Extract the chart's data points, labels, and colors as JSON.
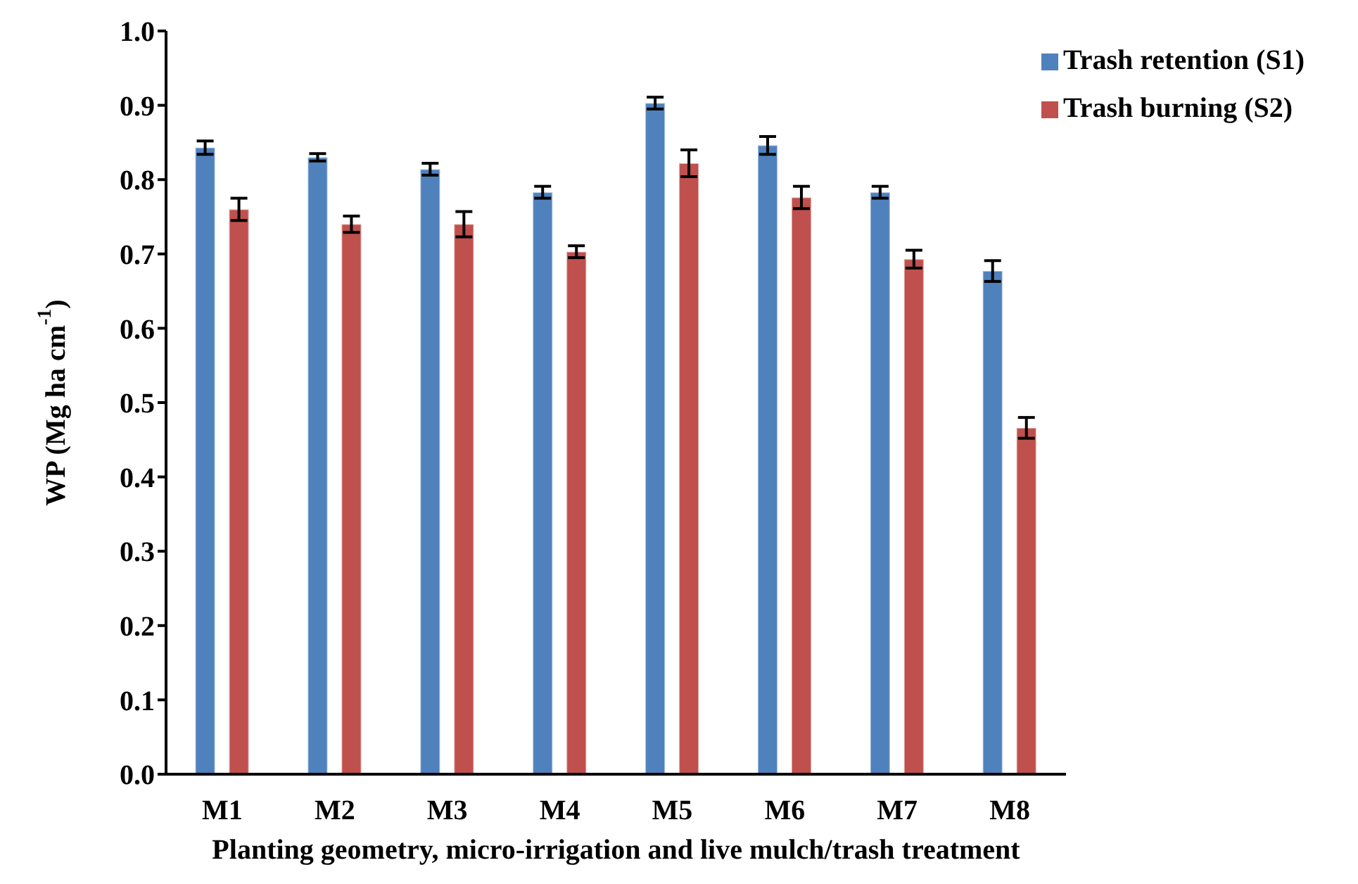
{
  "chart_data": {
    "type": "bar",
    "xlabel": "Planting geometry, micro-irrigation and live mulch/trash treatment",
    "ylabel": "WP (Mg  ha cm$^{-1}$)",
    "categories": [
      "M1",
      "M2",
      "M3",
      "M4",
      "M5",
      "M6",
      "M7",
      "M8"
    ],
    "series": [
      {
        "name": "Trash retention (S1)",
        "color": "#4f81bd",
        "values": [
          0.843,
          0.83,
          0.814,
          0.783,
          0.903,
          0.846,
          0.783,
          0.677
        ],
        "errors": [
          0.009,
          0.005,
          0.008,
          0.008,
          0.008,
          0.012,
          0.008,
          0.014
        ]
      },
      {
        "name": "Trash burning  (S2)",
        "color": "#c0504d",
        "values": [
          0.76,
          0.74,
          0.74,
          0.703,
          0.822,
          0.776,
          0.693,
          0.466
        ],
        "errors": [
          0.015,
          0.011,
          0.017,
          0.008,
          0.018,
          0.015,
          0.012,
          0.014
        ]
      }
    ],
    "ylim": [
      0,
      1
    ],
    "yticks": [
      {
        "value": 0,
        "label": "0.0"
      },
      0.1,
      0.2,
      0.3,
      0.4,
      0.5,
      0.6,
      0.7,
      0.8,
      0.9,
      {
        "value": 1,
        "label": "1.0"
      }
    ],
    "grid": false,
    "legend": "top right"
  }
}
